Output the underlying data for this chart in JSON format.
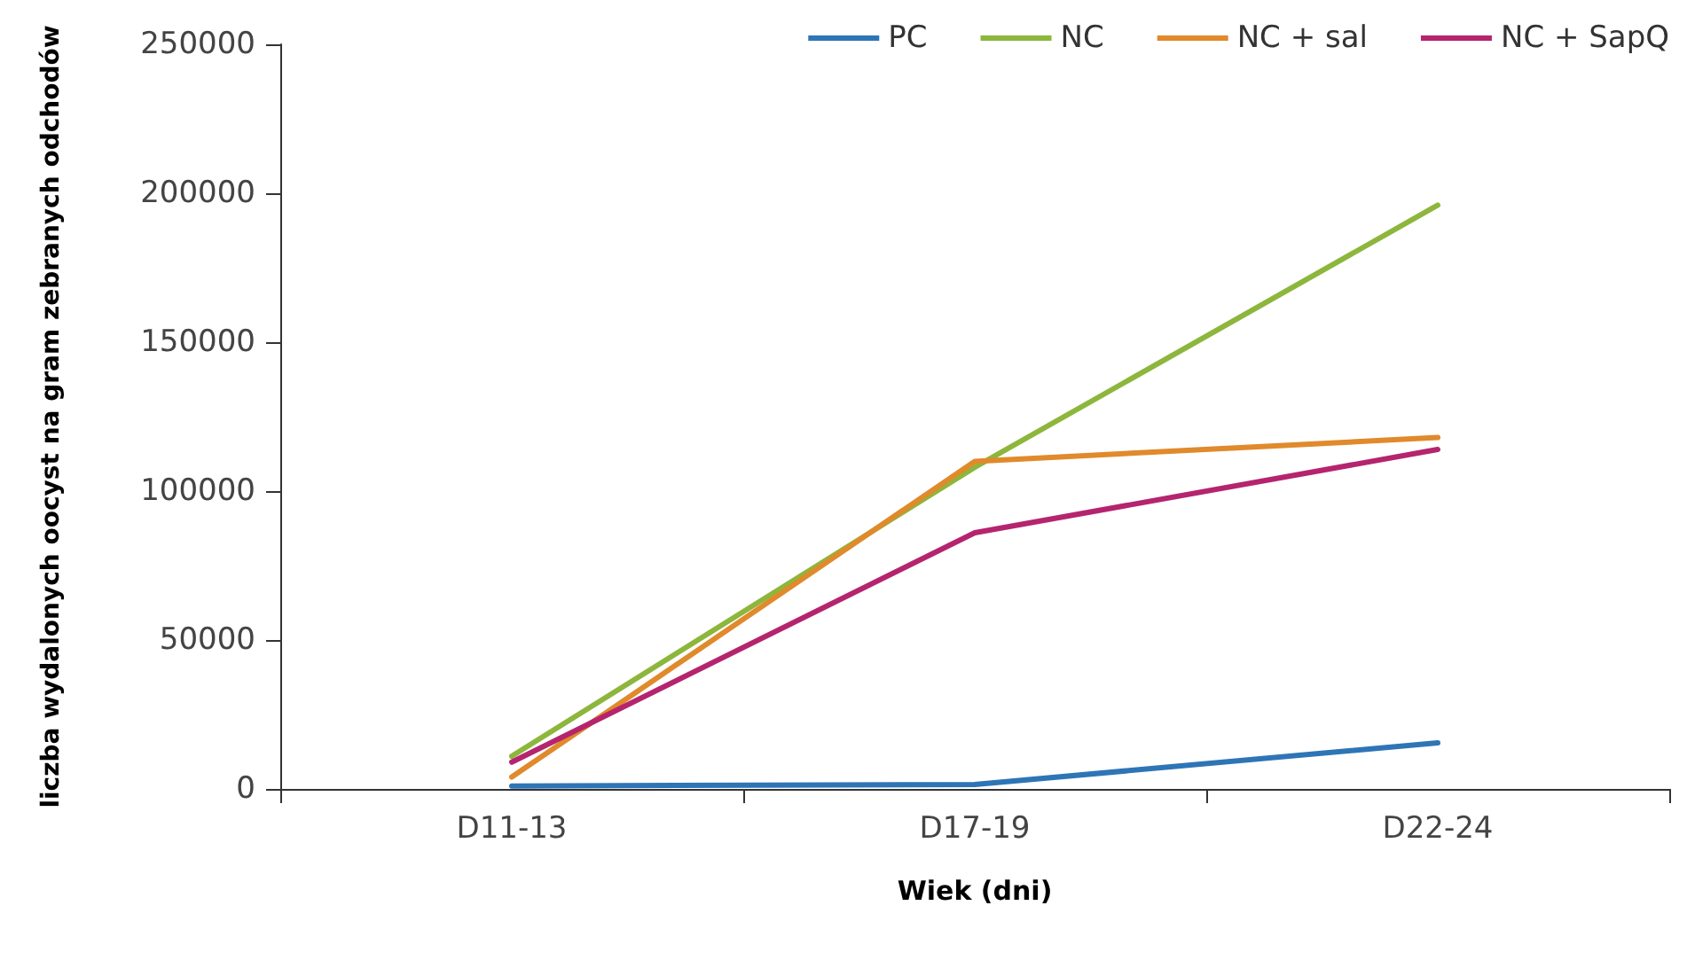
{
  "chart_data": {
    "type": "line",
    "xlabel": "Wiek (dni)",
    "ylabel": "liczba wydalonych oocyst na gram zebranych odchodów",
    "categories": [
      "D11-13",
      "D17-19",
      "D22-24"
    ],
    "series": [
      {
        "name": "PC",
        "color": "#2e75b6",
        "values": [
          1000,
          1500,
          15500
        ]
      },
      {
        "name": "NC",
        "color": "#8db63c",
        "values": [
          11000,
          108000,
          196000
        ]
      },
      {
        "name": "NC + sal",
        "color": "#e08a2c",
        "values": [
          4000,
          110000,
          118000
        ]
      },
      {
        "name": "NC + SapQ",
        "color": "#b5246e",
        "values": [
          9000,
          86000,
          114000
        ]
      }
    ],
    "ylim": [
      0,
      250000
    ],
    "yticks": [
      0,
      50000,
      100000,
      150000,
      200000,
      250000
    ],
    "grid": false,
    "legend": "top right",
    "marker": "none",
    "line_style": "solid"
  }
}
